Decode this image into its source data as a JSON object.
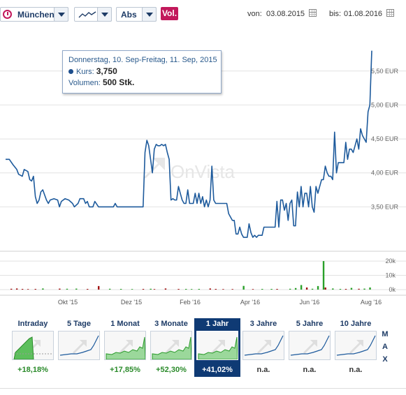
{
  "toolbar": {
    "exchange": "München",
    "scale": "Abs",
    "volume_label": "Vol.",
    "from_label": "von:",
    "from_date": "03.08.2015",
    "to_label": "bis:",
    "to_date": "01.08.2016"
  },
  "tooltip": {
    "date": "Donnerstag, 10. Sep-Freitag, 11. Sep, 2015",
    "price_label": "Kurs:",
    "price_value": "3,750",
    "volume_label": "Volumen:",
    "volume_value": "500 Stk."
  },
  "watermark": "OnVista",
  "chart_data": {
    "type": "line",
    "price_axis": {
      "ticks": [
        "3,50 EUR",
        "4,00 EUR",
        "4,50 EUR",
        "5,00 EUR",
        "5,50 EUR"
      ],
      "tick_values": [
        3.5,
        4.0,
        4.5,
        5.0,
        5.5
      ],
      "ylim": [
        3.0,
        5.95
      ]
    },
    "volume_axis": {
      "ticks": [
        "0k",
        "10k",
        "20k"
      ],
      "tick_values": [
        0,
        10,
        20
      ],
      "ylim": [
        0,
        22
      ]
    },
    "x_ticks": [
      "Okt '15",
      "Dez '15",
      "Feb '16",
      "Apr '16",
      "Jun '16",
      "Aug '16"
    ],
    "price_series": {
      "color": "#1d5a9c",
      "points": [
        [
          0,
          4.2
        ],
        [
          2,
          4.2
        ],
        [
          4,
          4.12
        ],
        [
          6,
          4.05
        ],
        [
          7,
          3.98
        ],
        [
          9,
          3.95
        ],
        [
          10,
          4.05
        ],
        [
          12,
          4.02
        ],
        [
          13,
          3.9
        ],
        [
          14,
          3.88
        ],
        [
          15,
          3.95
        ],
        [
          16,
          3.65
        ],
        [
          17,
          3.55
        ],
        [
          18,
          3.6
        ],
        [
          19,
          3.72
        ],
        [
          20,
          3.75
        ],
        [
          22,
          3.6
        ],
        [
          23,
          3.55
        ],
        [
          24,
          3.6
        ],
        [
          26,
          3.62
        ],
        [
          28,
          3.6
        ],
        [
          29,
          3.5
        ],
        [
          30,
          3.58
        ],
        [
          32,
          3.62
        ],
        [
          34,
          3.6
        ],
        [
          36,
          3.55
        ],
        [
          37,
          3.5
        ],
        [
          39,
          3.55
        ],
        [
          40,
          3.62
        ],
        [
          42,
          3.62
        ],
        [
          43,
          3.55
        ],
        [
          44,
          3.58
        ],
        [
          45,
          3.5
        ],
        [
          47,
          3.5
        ],
        [
          48,
          3.58
        ],
        [
          50,
          3.5
        ],
        [
          52,
          3.5
        ],
        [
          54,
          3.5
        ],
        [
          56,
          3.5
        ],
        [
          58,
          3.5
        ],
        [
          59,
          3.55
        ],
        [
          60,
          3.5
        ],
        [
          62,
          3.5
        ],
        [
          64,
          3.5
        ],
        [
          66,
          3.5
        ],
        [
          68,
          3.5
        ],
        [
          70,
          3.5
        ],
        [
          72,
          3.5
        ],
        [
          73,
          3.5
        ],
        [
          74,
          3.5
        ],
        [
          75,
          4.3
        ],
        [
          76,
          4.48
        ],
        [
          77,
          4.4
        ],
        [
          78,
          4.2
        ],
        [
          79,
          4.0
        ],
        [
          80,
          4.35
        ],
        [
          81,
          4.42
        ],
        [
          82,
          4.4
        ],
        [
          83,
          4.4
        ],
        [
          84,
          4.42
        ],
        [
          85,
          4.4
        ],
        [
          86,
          4.42
        ],
        [
          87,
          4.3
        ],
        [
          88,
          4.2
        ],
        [
          89,
          3.6
        ],
        [
          90,
          3.62
        ],
        [
          91,
          3.6
        ],
        [
          92,
          3.6
        ],
        [
          93,
          3.8
        ],
        [
          94,
          3.7
        ],
        [
          95,
          3.6
        ],
        [
          96,
          3.55
        ],
        [
          97,
          3.55
        ],
        [
          98,
          3.75
        ],
        [
          99,
          3.55
        ],
        [
          100,
          3.55
        ],
        [
          101,
          3.55
        ],
        [
          102,
          3.7
        ],
        [
          103,
          3.55
        ],
        [
          104,
          3.7
        ],
        [
          105,
          3.55
        ],
        [
          106,
          3.65
        ],
        [
          107,
          3.5
        ],
        [
          108,
          3.6
        ],
        [
          109,
          3.5
        ],
        [
          110,
          3.6
        ],
        [
          111,
          4.1
        ],
        [
          112,
          3.6
        ],
        [
          113,
          3.55
        ],
        [
          114,
          3.55
        ],
        [
          115,
          3.55
        ],
        [
          116,
          3.55
        ],
        [
          117,
          3.55
        ],
        [
          118,
          3.55
        ],
        [
          119,
          3.55
        ],
        [
          120,
          3.4
        ],
        [
          121,
          3.35
        ],
        [
          122,
          3.3
        ],
        [
          123,
          3.3
        ],
        [
          124,
          3.1
        ],
        [
          125,
          3.1
        ],
        [
          126,
          3.2
        ],
        [
          127,
          3.1
        ],
        [
          128,
          3.05
        ],
        [
          129,
          3.05
        ],
        [
          130,
          3.05
        ],
        [
          131,
          3.25
        ],
        [
          132,
          3.12
        ],
        [
          133,
          3.05
        ],
        [
          134,
          3.08
        ],
        [
          135,
          3.05
        ],
        [
          136,
          3.08
        ],
        [
          137,
          3.08
        ],
        [
          138,
          3.08
        ],
        [
          139,
          3.2
        ],
        [
          140,
          3.2
        ],
        [
          141,
          3.2
        ],
        [
          142,
          3.2
        ],
        [
          143,
          3.2
        ],
        [
          144,
          3.2
        ],
        [
          145,
          3.2
        ],
        [
          146,
          3.58
        ],
        [
          147,
          3.2
        ],
        [
          148,
          3.6
        ],
        [
          149,
          3.6
        ],
        [
          150,
          3.45
        ],
        [
          151,
          3.55
        ],
        [
          152,
          3.3
        ],
        [
          153,
          3.55
        ],
        [
          154,
          3.6
        ],
        [
          155,
          3.22
        ],
        [
          156,
          3.22
        ],
        [
          157,
          3.72
        ],
        [
          158,
          3.5
        ],
        [
          159,
          3.8
        ],
        [
          160,
          3.5
        ],
        [
          161,
          3.7
        ],
        [
          162,
          3.7
        ],
        [
          163,
          3.5
        ],
        [
          164,
          3.8
        ],
        [
          165,
          3.5
        ],
        [
          166,
          3.42
        ],
        [
          167,
          3.8
        ],
        [
          168,
          3.7
        ],
        [
          169,
          3.8
        ],
        [
          170,
          3.9
        ],
        [
          171,
          3.9
        ],
        [
          172,
          4.1
        ],
        [
          173,
          4.0
        ],
        [
          174,
          3.95
        ],
        [
          175,
          3.95
        ],
        [
          176,
          3.9
        ],
        [
          177,
          4.6
        ],
        [
          178,
          4.0
        ],
        [
          179,
          4.15
        ],
        [
          180,
          4.15
        ],
        [
          181,
          4.15
        ],
        [
          182,
          4.15
        ],
        [
          183,
          4.45
        ],
        [
          184,
          4.2
        ],
        [
          185,
          4.35
        ],
        [
          186,
          4.35
        ],
        [
          187,
          4.3
        ],
        [
          188,
          4.4
        ],
        [
          189,
          4.5
        ],
        [
          190,
          4.35
        ],
        [
          191,
          4.65
        ],
        [
          192,
          4.55
        ],
        [
          193,
          4.5
        ],
        [
          194,
          4.45
        ],
        [
          195,
          4.9
        ],
        [
          196,
          5.0
        ],
        [
          197,
          5.8
        ]
      ]
    },
    "volume_series": {
      "colors": {
        "up": "#2aa02a",
        "down": "#a31515"
      },
      "bars": [
        [
          3,
          0.6,
          "down"
        ],
        [
          6,
          0.8,
          "down"
        ],
        [
          9,
          0.5,
          "down"
        ],
        [
          12,
          0.4,
          "down"
        ],
        [
          16,
          0.5,
          "down"
        ],
        [
          20,
          0.8,
          "up"
        ],
        [
          29,
          0.7,
          "down"
        ],
        [
          33,
          0.6,
          "up"
        ],
        [
          38,
          0.7,
          "up"
        ],
        [
          44,
          0.5,
          "down"
        ],
        [
          50,
          2.5,
          "down"
        ],
        [
          56,
          0.6,
          "up"
        ],
        [
          62,
          0.5,
          "up"
        ],
        [
          68,
          0.4,
          "up"
        ],
        [
          74,
          0.5,
          "down"
        ],
        [
          78,
          0.6,
          "up"
        ],
        [
          80,
          0.4,
          "down"
        ],
        [
          86,
          0.8,
          "down"
        ],
        [
          93,
          0.5,
          "down"
        ],
        [
          97,
          0.5,
          "up"
        ],
        [
          100,
          0.4,
          "up"
        ],
        [
          104,
          0.5,
          "up"
        ],
        [
          110,
          0.8,
          "down"
        ],
        [
          113,
          0.5,
          "down"
        ],
        [
          117,
          0.4,
          "down"
        ],
        [
          122,
          0.4,
          "down"
        ],
        [
          128,
          2.6,
          "up"
        ],
        [
          133,
          0.4,
          "down"
        ],
        [
          138,
          0.5,
          "up"
        ],
        [
          143,
          0.5,
          "up"
        ],
        [
          146,
          0.5,
          "down"
        ],
        [
          153,
          0.6,
          "up"
        ],
        [
          156,
          1.1,
          "up"
        ],
        [
          159,
          3.2,
          "up"
        ],
        [
          162,
          1.5,
          "down"
        ],
        [
          165,
          0.6,
          "up"
        ],
        [
          168,
          2.5,
          "up"
        ],
        [
          171,
          20,
          "up"
        ],
        [
          172,
          1.5,
          "down"
        ],
        [
          176,
          0.8,
          "up"
        ],
        [
          180,
          0.5,
          "up"
        ],
        [
          183,
          0.5,
          "down"
        ],
        [
          186,
          1.2,
          "up"
        ],
        [
          190,
          0.6,
          "down"
        ],
        [
          193,
          0.7,
          "up"
        ],
        [
          196,
          1.5,
          "up"
        ]
      ]
    }
  },
  "periods": [
    {
      "label": "Intraday",
      "change": "+18,18%",
      "change_color": "#2a8a2a",
      "active": false,
      "thumb": "intraday"
    },
    {
      "label": "5 Tage",
      "change": "",
      "change_color": "#2a8a2a",
      "active": false,
      "thumb": "line"
    },
    {
      "label": "1 Monat",
      "change": "+17,85%",
      "change_color": "#2a8a2a",
      "active": false,
      "thumb": "area"
    },
    {
      "label": "3 Monate",
      "change": "+52,30%",
      "change_color": "#2a8a2a",
      "active": false,
      "thumb": "area"
    },
    {
      "label": "1 Jahr",
      "change": "+41,02%",
      "change_color": "#2a8a2a",
      "active": true,
      "thumb": "area"
    },
    {
      "label": "3 Jahre",
      "change": "n.a.",
      "change_color": "#333333",
      "active": false,
      "thumb": "line"
    },
    {
      "label": "5 Jahre",
      "change": "n.a.",
      "change_color": "#333333",
      "active": false,
      "thumb": "line"
    },
    {
      "label": "10 Jahre",
      "change": "n.a.",
      "change_color": "#333333",
      "active": false,
      "thumb": "line"
    }
  ],
  "max_label": [
    "M",
    "A",
    "X"
  ]
}
